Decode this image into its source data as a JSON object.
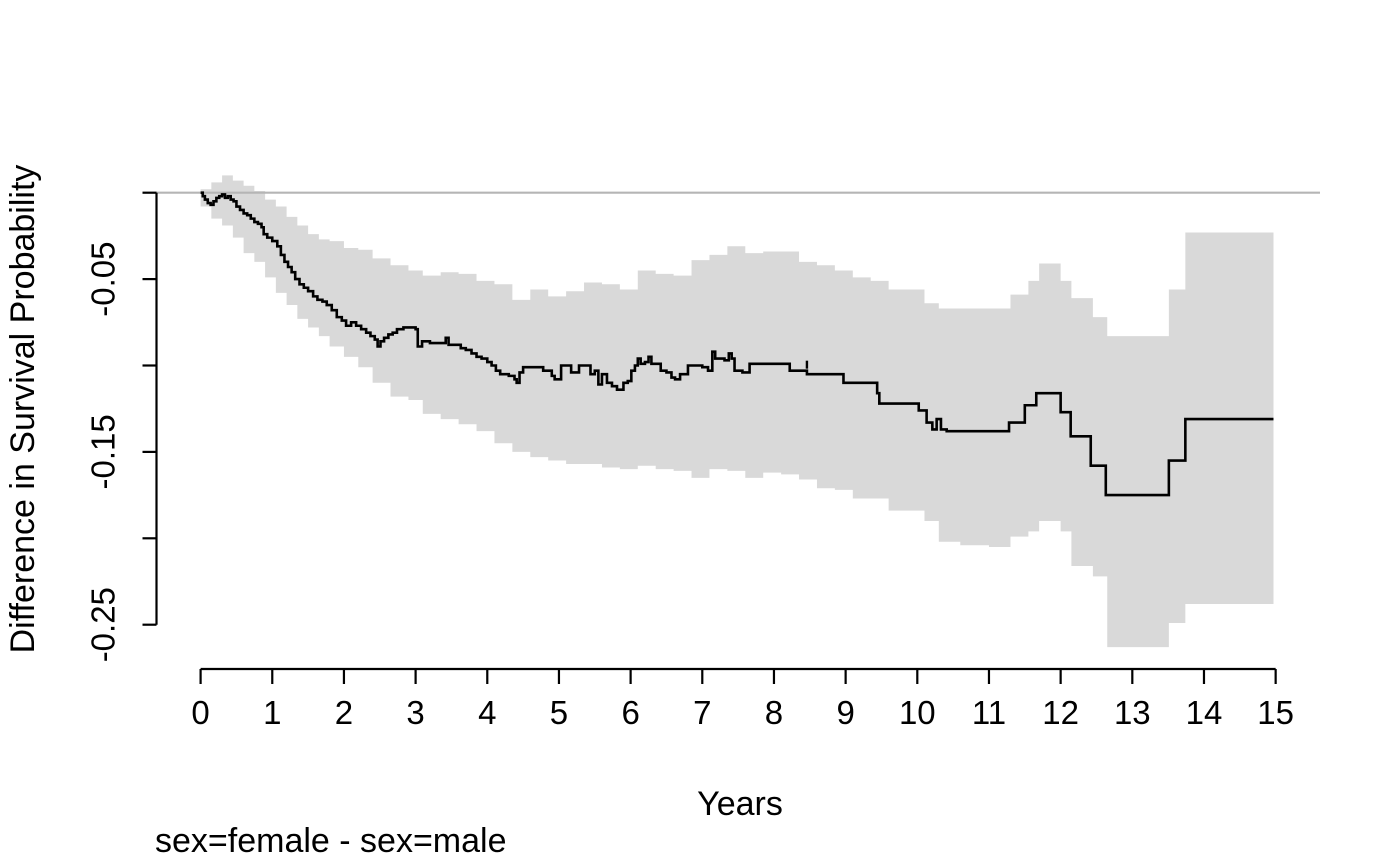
{
  "chart_data": {
    "type": "line",
    "subtype": "kaplan-meier-difference-step-curve-with-confidence-band",
    "title": "",
    "xlabel": "Years",
    "ylabel": "Difference in Survival Probability",
    "caption": "sex=female - sex=male",
    "xlim": [
      0,
      15
    ],
    "ylim": [
      -0.285,
      0.012
    ],
    "grid": false,
    "legend": "none",
    "reference_line_y": 0,
    "x_ticks": [
      {
        "v": 0,
        "label": "0"
      },
      {
        "v": 1,
        "label": "1"
      },
      {
        "v": 2,
        "label": "2"
      },
      {
        "v": 3,
        "label": "3"
      },
      {
        "v": 4,
        "label": "4"
      },
      {
        "v": 5,
        "label": "5"
      },
      {
        "v": 6,
        "label": "6"
      },
      {
        "v": 7,
        "label": "7"
      },
      {
        "v": 8,
        "label": "8"
      },
      {
        "v": 9,
        "label": "9"
      },
      {
        "v": 10,
        "label": "10"
      },
      {
        "v": 11,
        "label": "11"
      },
      {
        "v": 12,
        "label": "12"
      },
      {
        "v": 13,
        "label": "13"
      },
      {
        "v": 14,
        "label": "14"
      },
      {
        "v": 15,
        "label": "15"
      }
    ],
    "y_ticks": [
      {
        "v": 0,
        "label": ""
      },
      {
        "v": -0.05,
        "label": "-0.05"
      },
      {
        "v": -0.1,
        "label": ""
      },
      {
        "v": -0.15,
        "label": "-0.15"
      },
      {
        "v": -0.2,
        "label": ""
      },
      {
        "v": -0.25,
        "label": "-0.25"
      }
    ],
    "t_end": 14.97,
    "curve": [
      [
        0.0,
        0.0
      ],
      [
        0.03,
        -0.002
      ],
      [
        0.06,
        -0.004
      ],
      [
        0.1,
        -0.006
      ],
      [
        0.14,
        -0.007
      ],
      [
        0.18,
        -0.005
      ],
      [
        0.22,
        -0.003
      ],
      [
        0.26,
        -0.002
      ],
      [
        0.3,
        -0.001
      ],
      [
        0.34,
        -0.003
      ],
      [
        0.38,
        -0.002
      ],
      [
        0.42,
        -0.004
      ],
      [
        0.46,
        -0.005
      ],
      [
        0.5,
        -0.008
      ],
      [
        0.55,
        -0.01
      ],
      [
        0.6,
        -0.012
      ],
      [
        0.65,
        -0.013
      ],
      [
        0.7,
        -0.015
      ],
      [
        0.75,
        -0.017
      ],
      [
        0.8,
        -0.018
      ],
      [
        0.85,
        -0.02
      ],
      [
        0.88,
        -0.024
      ],
      [
        0.93,
        -0.026
      ],
      [
        1.0,
        -0.028
      ],
      [
        1.07,
        -0.031
      ],
      [
        1.12,
        -0.036
      ],
      [
        1.17,
        -0.04
      ],
      [
        1.22,
        -0.043
      ],
      [
        1.27,
        -0.046
      ],
      [
        1.32,
        -0.05
      ],
      [
        1.38,
        -0.053
      ],
      [
        1.44,
        -0.055
      ],
      [
        1.5,
        -0.057
      ],
      [
        1.57,
        -0.06
      ],
      [
        1.63,
        -0.062
      ],
      [
        1.7,
        -0.063
      ],
      [
        1.76,
        -0.065
      ],
      [
        1.83,
        -0.068
      ],
      [
        1.9,
        -0.072
      ],
      [
        1.97,
        -0.074
      ],
      [
        2.03,
        -0.077
      ],
      [
        2.1,
        -0.075
      ],
      [
        2.17,
        -0.077
      ],
      [
        2.24,
        -0.079
      ],
      [
        2.31,
        -0.081
      ],
      [
        2.37,
        -0.083
      ],
      [
        2.43,
        -0.085
      ],
      [
        2.47,
        -0.089
      ],
      [
        2.51,
        -0.086
      ],
      [
        2.56,
        -0.084
      ],
      [
        2.62,
        -0.082
      ],
      [
        2.68,
        -0.081
      ],
      [
        2.74,
        -0.079
      ],
      [
        2.83,
        -0.078
      ],
      [
        3.0,
        -0.079
      ],
      [
        3.03,
        -0.089
      ],
      [
        3.09,
        -0.086
      ],
      [
        3.2,
        -0.087
      ],
      [
        3.42,
        -0.084
      ],
      [
        3.46,
        -0.088
      ],
      [
        3.63,
        -0.09
      ],
      [
        3.7,
        -0.091
      ],
      [
        3.78,
        -0.093
      ],
      [
        3.85,
        -0.095
      ],
      [
        3.92,
        -0.096
      ],
      [
        4.0,
        -0.098
      ],
      [
        4.06,
        -0.1
      ],
      [
        4.12,
        -0.103
      ],
      [
        4.18,
        -0.105
      ],
      [
        4.3,
        -0.106
      ],
      [
        4.38,
        -0.108
      ],
      [
        4.41,
        -0.11
      ],
      [
        4.45,
        -0.104
      ],
      [
        4.5,
        -0.101
      ],
      [
        4.78,
        -0.103
      ],
      [
        4.9,
        -0.106
      ],
      [
        4.94,
        -0.108
      ],
      [
        5.03,
        -0.1
      ],
      [
        5.17,
        -0.104
      ],
      [
        5.28,
        -0.1
      ],
      [
        5.44,
        -0.105
      ],
      [
        5.5,
        -0.103
      ],
      [
        5.55,
        -0.111
      ],
      [
        5.6,
        -0.105
      ],
      [
        5.67,
        -0.11
      ],
      [
        5.74,
        -0.112
      ],
      [
        5.81,
        -0.114
      ],
      [
        5.9,
        -0.11
      ],
      [
        5.96,
        -0.109
      ],
      [
        6.01,
        -0.103
      ],
      [
        6.06,
        -0.1
      ],
      [
        6.1,
        -0.096
      ],
      [
        6.14,
        -0.099
      ],
      [
        6.2,
        -0.098
      ],
      [
        6.25,
        -0.095
      ],
      [
        6.29,
        -0.099
      ],
      [
        6.42,
        -0.103
      ],
      [
        6.5,
        -0.104
      ],
      [
        6.57,
        -0.107
      ],
      [
        6.62,
        -0.108
      ],
      [
        6.69,
        -0.105
      ],
      [
        6.8,
        -0.1
      ],
      [
        7.0,
        -0.101
      ],
      [
        7.08,
        -0.103
      ],
      [
        7.14,
        -0.092
      ],
      [
        7.18,
        -0.096
      ],
      [
        7.31,
        -0.097
      ],
      [
        7.37,
        -0.093
      ],
      [
        7.41,
        -0.096
      ],
      [
        7.45,
        -0.103
      ],
      [
        7.56,
        -0.104
      ],
      [
        7.66,
        -0.099
      ],
      [
        8.22,
        -0.103
      ],
      [
        8.46,
        -0.105
      ],
      [
        8.97,
        -0.11
      ],
      [
        9.44,
        -0.116
      ],
      [
        9.47,
        -0.122
      ],
      [
        10.02,
        -0.126
      ],
      [
        10.13,
        -0.133
      ],
      [
        10.21,
        -0.137
      ],
      [
        10.27,
        -0.131
      ],
      [
        10.33,
        -0.137
      ],
      [
        10.41,
        -0.138
      ],
      [
        11.28,
        -0.133
      ],
      [
        11.5,
        -0.123
      ],
      [
        11.66,
        -0.116
      ],
      [
        12.0,
        -0.127
      ],
      [
        12.14,
        -0.141
      ],
      [
        12.42,
        -0.158
      ],
      [
        12.63,
        -0.175
      ],
      [
        13.51,
        -0.155
      ],
      [
        13.74,
        -0.131
      ]
    ],
    "band": [
      [
        0.0,
        -0.008,
        0.002
      ],
      [
        0.15,
        -0.015,
        0.006
      ],
      [
        0.3,
        -0.019,
        0.01
      ],
      [
        0.45,
        -0.026,
        0.007
      ],
      [
        0.6,
        -0.035,
        0.004
      ],
      [
        0.75,
        -0.04,
        0.001
      ],
      [
        0.9,
        -0.049,
        -0.004
      ],
      [
        1.05,
        -0.058,
        -0.008
      ],
      [
        1.2,
        -0.065,
        -0.014
      ],
      [
        1.35,
        -0.073,
        -0.019
      ],
      [
        1.5,
        -0.078,
        -0.024
      ],
      [
        1.65,
        -0.083,
        -0.027
      ],
      [
        1.8,
        -0.089,
        -0.028
      ],
      [
        2.0,
        -0.095,
        -0.032
      ],
      [
        2.2,
        -0.101,
        -0.033
      ],
      [
        2.4,
        -0.11,
        -0.038
      ],
      [
        2.65,
        -0.118,
        -0.042
      ],
      [
        2.9,
        -0.12,
        -0.045
      ],
      [
        3.1,
        -0.128,
        -0.048
      ],
      [
        3.35,
        -0.131,
        -0.046
      ],
      [
        3.6,
        -0.134,
        -0.047
      ],
      [
        3.85,
        -0.138,
        -0.051
      ],
      [
        4.1,
        -0.145,
        -0.053
      ],
      [
        4.35,
        -0.15,
        -0.062
      ],
      [
        4.6,
        -0.153,
        -0.056
      ],
      [
        4.85,
        -0.155,
        -0.06
      ],
      [
        5.1,
        -0.157,
        -0.057
      ],
      [
        5.35,
        -0.157,
        -0.052
      ],
      [
        5.6,
        -0.159,
        -0.053
      ],
      [
        5.85,
        -0.16,
        -0.056
      ],
      [
        6.1,
        -0.158,
        -0.045
      ],
      [
        6.35,
        -0.16,
        -0.047
      ],
      [
        6.6,
        -0.161,
        -0.048
      ],
      [
        6.85,
        -0.165,
        -0.039
      ],
      [
        7.1,
        -0.16,
        -0.036
      ],
      [
        7.35,
        -0.161,
        -0.031
      ],
      [
        7.6,
        -0.165,
        -0.035
      ],
      [
        7.85,
        -0.162,
        -0.034
      ],
      [
        8.1,
        -0.163,
        -0.034
      ],
      [
        8.35,
        -0.166,
        -0.04
      ],
      [
        8.6,
        -0.171,
        -0.042
      ],
      [
        8.85,
        -0.172,
        -0.045
      ],
      [
        9.1,
        -0.177,
        -0.049
      ],
      [
        9.35,
        -0.177,
        -0.051
      ],
      [
        9.6,
        -0.184,
        -0.056
      ],
      [
        9.85,
        -0.184,
        -0.056
      ],
      [
        10.1,
        -0.19,
        -0.064
      ],
      [
        10.3,
        -0.202,
        -0.067
      ],
      [
        10.6,
        -0.204,
        -0.067
      ],
      [
        11.0,
        -0.205,
        -0.067
      ],
      [
        11.3,
        -0.199,
        -0.059
      ],
      [
        11.55,
        -0.196,
        -0.051
      ],
      [
        11.7,
        -0.19,
        -0.041
      ],
      [
        12.0,
        -0.196,
        -0.051
      ],
      [
        12.15,
        -0.216,
        -0.061
      ],
      [
        12.45,
        -0.222,
        -0.072
      ],
      [
        12.65,
        -0.263,
        -0.083
      ],
      [
        13.51,
        -0.249,
        -0.056
      ],
      [
        13.74,
        -0.238,
        -0.023
      ]
    ],
    "censor_ticks": [
      [
        8.46,
        -0.103
      ]
    ]
  },
  "colors": {
    "background": "#ffffff",
    "band_fill": "#d9d9d9",
    "curve_stroke": "#000000",
    "reference_line": "#b5b5b5",
    "axis_stroke": "#000000",
    "text": "#000000"
  }
}
